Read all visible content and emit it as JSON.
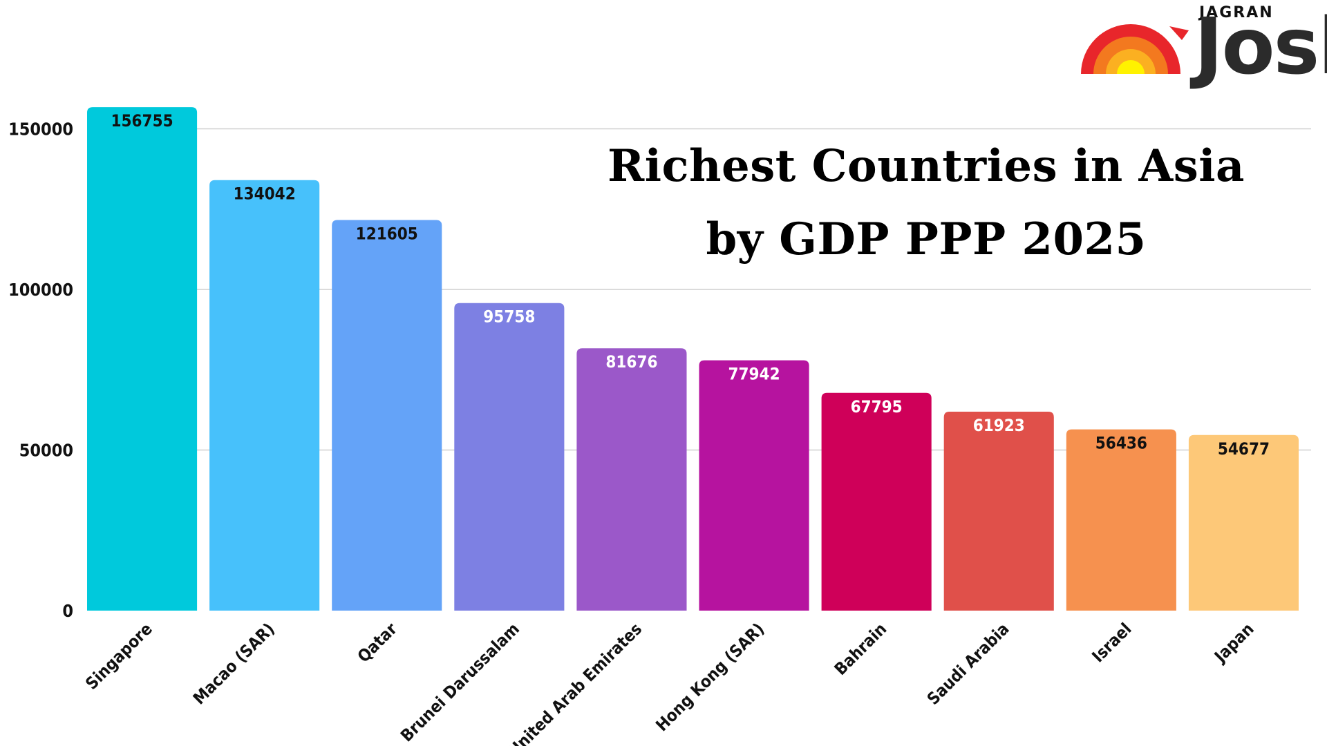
{
  "title": "Richest Countries in Asia by GDP PPP 2025",
  "logo": {
    "top_text": "JAGRAN",
    "main_text": "Josh"
  },
  "chart_data": {
    "type": "bar",
    "title": "Richest Countries in Asia by GDP PPP 2025",
    "xlabel": "",
    "ylabel": "",
    "ylim": [
      0,
      160000
    ],
    "yticks": [
      0,
      50000,
      100000,
      150000
    ],
    "grid": true,
    "categories": [
      "Singapore",
      "Macao (SAR)",
      "Qatar",
      "Brunei Darussalam",
      "United Arab Emirates",
      "Hong Kong (SAR)",
      "Bahrain",
      "Saudi Arabia",
      "Israel",
      "Japan"
    ],
    "values": [
      156755,
      134042,
      121605,
      95758,
      81676,
      77942,
      67795,
      61923,
      56436,
      54677
    ],
    "colors": [
      "#00c9dc",
      "#47c1fb",
      "#64a3f8",
      "#7d80e3",
      "#9b58c9",
      "#b6139f",
      "#cf0059",
      "#e0504a",
      "#f6914f",
      "#fdc878"
    ],
    "label_colors": [
      "#111111",
      "#111111",
      "#111111",
      "#ffffff",
      "#ffffff",
      "#ffffff",
      "#ffffff",
      "#ffffff",
      "#111111",
      "#111111"
    ]
  }
}
